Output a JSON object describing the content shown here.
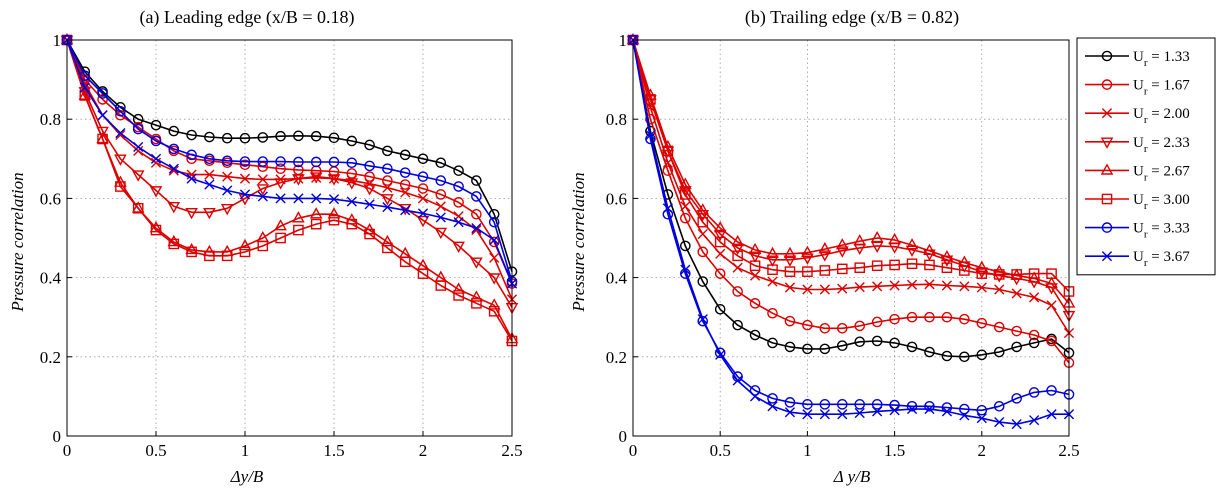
{
  "chart_data": [
    {
      "type": "line",
      "title": "(a) Leading edge (x/B = 0.18)",
      "xlabel": "Δy/B",
      "ylabel": "Pressure correlation",
      "xlim": [
        0,
        2.5
      ],
      "ylim": [
        0,
        1
      ],
      "xticks": [
        "0",
        "0.5",
        "1",
        "1.5",
        "2",
        "2.5"
      ],
      "yticks": [
        "0",
        "0.2",
        "0.4",
        "0.6",
        "0.8",
        "1"
      ],
      "grid": true,
      "x": [
        0,
        0.1,
        0.2,
        0.3,
        0.4,
        0.5,
        0.6,
        0.7,
        0.8,
        0.9,
        1.0,
        1.1,
        1.2,
        1.3,
        1.4,
        1.5,
        1.6,
        1.7,
        1.8,
        1.9,
        2.0,
        2.1,
        2.2,
        2.3,
        2.4,
        2.5
      ],
      "series": [
        {
          "name": "U_r = 1.33",
          "color": "#000000",
          "marker": "circle",
          "values": [
            1.0,
            0.92,
            0.87,
            0.83,
            0.8,
            0.785,
            0.77,
            0.76,
            0.755,
            0.752,
            0.752,
            0.754,
            0.757,
            0.758,
            0.757,
            0.753,
            0.745,
            0.735,
            0.72,
            0.71,
            0.7,
            0.69,
            0.67,
            0.645,
            0.56,
            0.415
          ]
        },
        {
          "name": "U_r = 1.67",
          "color": "#dd0000",
          "marker": "circle",
          "values": [
            1.0,
            0.9,
            0.85,
            0.81,
            0.78,
            0.75,
            0.72,
            0.7,
            0.695,
            0.69,
            0.685,
            0.68,
            0.675,
            0.672,
            0.67,
            0.668,
            0.663,
            0.655,
            0.645,
            0.635,
            0.625,
            0.61,
            0.59,
            0.56,
            0.49,
            0.385
          ]
        },
        {
          "name": "U_r = 2.00",
          "color": "#dd0000",
          "marker": "x",
          "values": [
            1.0,
            0.89,
            0.81,
            0.76,
            0.72,
            0.69,
            0.67,
            0.66,
            0.66,
            0.655,
            0.65,
            0.648,
            0.648,
            0.65,
            0.652,
            0.65,
            0.645,
            0.637,
            0.627,
            0.615,
            0.6,
            0.58,
            0.555,
            0.52,
            0.45,
            0.345
          ]
        },
        {
          "name": "U_r = 2.33",
          "color": "#dd0000",
          "marker": "triangle-down",
          "values": [
            1.0,
            0.87,
            0.77,
            0.7,
            0.66,
            0.62,
            0.58,
            0.565,
            0.565,
            0.575,
            0.6,
            0.625,
            0.64,
            0.65,
            0.655,
            0.65,
            0.64,
            0.625,
            0.6,
            0.575,
            0.545,
            0.515,
            0.48,
            0.44,
            0.4,
            0.325
          ]
        },
        {
          "name": "U_r = 2.67",
          "color": "#dd0000",
          "marker": "triangle-up",
          "values": [
            1.0,
            0.86,
            0.75,
            0.64,
            0.575,
            0.525,
            0.49,
            0.47,
            0.465,
            0.465,
            0.48,
            0.5,
            0.53,
            0.55,
            0.56,
            0.56,
            0.545,
            0.52,
            0.49,
            0.46,
            0.43,
            0.4,
            0.37,
            0.35,
            0.33,
            0.245
          ]
        },
        {
          "name": "U_r = 3.00",
          "color": "#dd0000",
          "marker": "square",
          "values": [
            1.0,
            0.86,
            0.75,
            0.63,
            0.575,
            0.52,
            0.485,
            0.465,
            0.455,
            0.455,
            0.465,
            0.48,
            0.5,
            0.52,
            0.535,
            0.545,
            0.535,
            0.51,
            0.475,
            0.44,
            0.41,
            0.38,
            0.355,
            0.335,
            0.315,
            0.24
          ]
        },
        {
          "name": "U_r = 3.33",
          "color": "#0000dd",
          "marker": "circle",
          "values": [
            1.0,
            0.91,
            0.865,
            0.82,
            0.775,
            0.745,
            0.725,
            0.71,
            0.7,
            0.695,
            0.693,
            0.693,
            0.693,
            0.692,
            0.692,
            0.692,
            0.69,
            0.682,
            0.675,
            0.665,
            0.655,
            0.645,
            0.63,
            0.605,
            0.54,
            0.39
          ]
        },
        {
          "name": "U_r = 3.67",
          "color": "#0000dd",
          "marker": "x",
          "values": [
            1.0,
            0.88,
            0.81,
            0.765,
            0.73,
            0.7,
            0.675,
            0.65,
            0.635,
            0.62,
            0.61,
            0.605,
            0.6,
            0.6,
            0.6,
            0.598,
            0.592,
            0.585,
            0.578,
            0.57,
            0.562,
            0.552,
            0.54,
            0.525,
            0.495,
            0.385
          ]
        }
      ]
    },
    {
      "type": "line",
      "title": "(b) Trailing edge (x/B = 0.82)",
      "xlabel": "Δ y/B",
      "ylabel": "Pressure correlation",
      "xlim": [
        0,
        2.5
      ],
      "ylim": [
        0,
        1
      ],
      "xticks": [
        "0",
        "0.5",
        "1",
        "1.5",
        "2",
        "2.5"
      ],
      "yticks": [
        "0",
        "0.2",
        "0.4",
        "0.6",
        "0.8",
        "1"
      ],
      "grid": true,
      "x": [
        0,
        0.1,
        0.2,
        0.3,
        0.4,
        0.5,
        0.6,
        0.7,
        0.8,
        0.9,
        1.0,
        1.1,
        1.2,
        1.3,
        1.4,
        1.5,
        1.6,
        1.7,
        1.8,
        1.9,
        2.0,
        2.1,
        2.2,
        2.3,
        2.4,
        2.5
      ],
      "series": [
        {
          "name": "U_r = 1.33",
          "color": "#000000",
          "marker": "circle",
          "values": [
            1.0,
            0.77,
            0.61,
            0.48,
            0.39,
            0.32,
            0.28,
            0.255,
            0.235,
            0.225,
            0.22,
            0.22,
            0.228,
            0.238,
            0.24,
            0.235,
            0.225,
            0.212,
            0.202,
            0.2,
            0.205,
            0.212,
            0.225,
            0.235,
            0.245,
            0.21
          ]
        },
        {
          "name": "U_r = 1.67",
          "color": "#dd0000",
          "marker": "circle",
          "values": [
            1.0,
            0.8,
            0.67,
            0.55,
            0.465,
            0.41,
            0.365,
            0.335,
            0.31,
            0.29,
            0.28,
            0.272,
            0.272,
            0.278,
            0.288,
            0.295,
            0.3,
            0.3,
            0.3,
            0.295,
            0.285,
            0.275,
            0.265,
            0.255,
            0.24,
            0.185
          ]
        },
        {
          "name": "U_r = 2.00",
          "color": "#dd0000",
          "marker": "x",
          "values": [
            1.0,
            0.83,
            0.69,
            0.58,
            0.51,
            0.46,
            0.425,
            0.405,
            0.39,
            0.375,
            0.37,
            0.37,
            0.372,
            0.376,
            0.378,
            0.38,
            0.382,
            0.383,
            0.38,
            0.378,
            0.375,
            0.37,
            0.36,
            0.35,
            0.33,
            0.26
          ]
        },
        {
          "name": "U_r = 2.33",
          "color": "#dd0000",
          "marker": "triangle-down",
          "values": [
            1.0,
            0.85,
            0.72,
            0.62,
            0.56,
            0.51,
            0.475,
            0.455,
            0.445,
            0.445,
            0.45,
            0.458,
            0.468,
            0.475,
            0.48,
            0.478,
            0.47,
            0.46,
            0.445,
            0.43,
            0.415,
            0.405,
            0.398,
            0.39,
            0.375,
            0.305
          ]
        },
        {
          "name": "U_r = 2.67",
          "color": "#dd0000",
          "marker": "triangle-up",
          "values": [
            1.0,
            0.86,
            0.73,
            0.635,
            0.57,
            0.525,
            0.49,
            0.47,
            0.46,
            0.46,
            0.463,
            0.472,
            0.482,
            0.492,
            0.5,
            0.495,
            0.482,
            0.468,
            0.452,
            0.438,
            0.425,
            0.415,
            0.405,
            0.398,
            0.385,
            0.335
          ]
        },
        {
          "name": "U_r = 3.00",
          "color": "#dd0000",
          "marker": "square",
          "values": [
            1.0,
            0.85,
            0.72,
            0.61,
            0.54,
            0.49,
            0.455,
            0.43,
            0.42,
            0.415,
            0.415,
            0.418,
            0.422,
            0.425,
            0.43,
            0.432,
            0.435,
            0.432,
            0.425,
            0.418,
            0.41,
            0.408,
            0.408,
            0.41,
            0.41,
            0.365
          ]
        },
        {
          "name": "U_r = 3.33",
          "color": "#0000dd",
          "marker": "circle",
          "values": [
            1.0,
            0.75,
            0.56,
            0.41,
            0.29,
            0.21,
            0.15,
            0.115,
            0.095,
            0.085,
            0.08,
            0.08,
            0.08,
            0.08,
            0.08,
            0.078,
            0.075,
            0.075,
            0.072,
            0.068,
            0.065,
            0.075,
            0.095,
            0.11,
            0.115,
            0.105
          ]
        },
        {
          "name": "U_r = 3.67",
          "color": "#0000dd",
          "marker": "x",
          "values": [
            1.0,
            0.76,
            0.575,
            0.42,
            0.295,
            0.205,
            0.14,
            0.1,
            0.075,
            0.06,
            0.055,
            0.055,
            0.055,
            0.058,
            0.062,
            0.065,
            0.068,
            0.068,
            0.062,
            0.052,
            0.045,
            0.035,
            0.03,
            0.04,
            0.055,
            0.055
          ]
        }
      ]
    }
  ],
  "legend": {
    "placement": "right",
    "entries": [
      {
        "prefix": "U",
        "sub": "r",
        "rest": " = 1.33",
        "color": "#000000",
        "marker": "circle"
      },
      {
        "prefix": "U",
        "sub": "r",
        "rest": " = 1.67",
        "color": "#dd0000",
        "marker": "circle"
      },
      {
        "prefix": "U",
        "sub": "r",
        "rest": " = 2.00",
        "color": "#dd0000",
        "marker": "x"
      },
      {
        "prefix": "U",
        "sub": "r",
        "rest": " = 2.33",
        "color": "#dd0000",
        "marker": "triangle-down"
      },
      {
        "prefix": "U",
        "sub": "r",
        "rest": " = 2.67",
        "color": "#dd0000",
        "marker": "triangle-up"
      },
      {
        "prefix": "U",
        "sub": "r",
        "rest": " = 3.00",
        "color": "#dd0000",
        "marker": "square"
      },
      {
        "prefix": "U",
        "sub": "r",
        "rest": " = 3.33",
        "color": "#0000dd",
        "marker": "circle"
      },
      {
        "prefix": "U",
        "sub": "r",
        "rest": " = 3.67",
        "color": "#0000dd",
        "marker": "x"
      }
    ]
  }
}
